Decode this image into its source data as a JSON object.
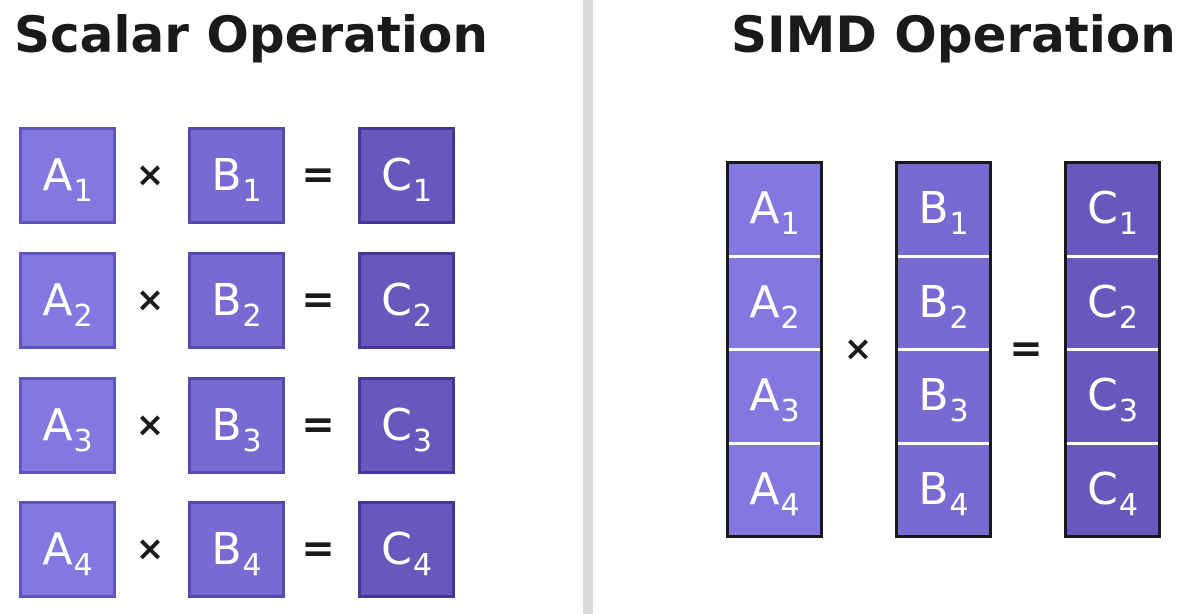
{
  "scalar": {
    "title": "Scalar Operation",
    "rows": [
      {
        "a": "A",
        "a_sub": "1",
        "op1": "×",
        "b": "B",
        "b_sub": "1",
        "op2": "=",
        "c": "C",
        "c_sub": "1"
      },
      {
        "a": "A",
        "a_sub": "2",
        "op1": "×",
        "b": "B",
        "b_sub": "2",
        "op2": "=",
        "c": "C",
        "c_sub": "2"
      },
      {
        "a": "A",
        "a_sub": "3",
        "op1": "×",
        "b": "B",
        "b_sub": "3",
        "op2": "=",
        "c": "C",
        "c_sub": "3"
      },
      {
        "a": "A",
        "a_sub": "4",
        "op1": "×",
        "b": "B",
        "b_sub": "4",
        "op2": "=",
        "c": "C",
        "c_sub": "4"
      }
    ]
  },
  "simd": {
    "title": "SIMD Operation",
    "a_cells": [
      {
        "l": "A",
        "s": "1"
      },
      {
        "l": "A",
        "s": "2"
      },
      {
        "l": "A",
        "s": "3"
      },
      {
        "l": "A",
        "s": "4"
      }
    ],
    "b_cells": [
      {
        "l": "B",
        "s": "1"
      },
      {
        "l": "B",
        "s": "2"
      },
      {
        "l": "B",
        "s": "3"
      },
      {
        "l": "B",
        "s": "4"
      }
    ],
    "c_cells": [
      {
        "l": "C",
        "s": "1"
      },
      {
        "l": "C",
        "s": "2"
      },
      {
        "l": "C",
        "s": "3"
      },
      {
        "l": "C",
        "s": "4"
      }
    ],
    "op_mul": "×",
    "op_eq": "="
  },
  "colors": {
    "a_fill": "#8378e0",
    "b_fill": "#776ad2",
    "c_fill": "#6857bd",
    "divider": "#d9d9d9"
  }
}
